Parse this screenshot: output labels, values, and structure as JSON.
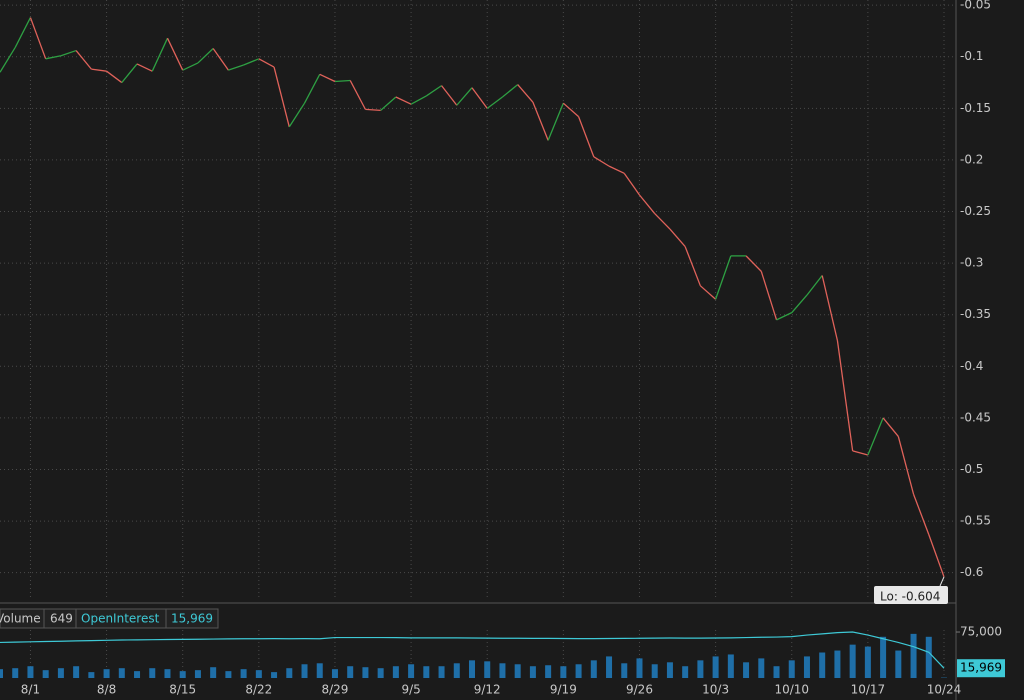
{
  "chart_data": [
    {
      "type": "line",
      "values": [
        -0.115,
        -0.091,
        -0.062,
        -0.102,
        -0.099,
        -0.094,
        -0.112,
        -0.114,
        -0.125,
        -0.107,
        -0.114,
        -0.082,
        -0.113,
        -0.106,
        -0.092,
        -0.113,
        -0.108,
        -0.102,
        -0.11,
        -0.168,
        -0.145,
        -0.117,
        -0.124,
        -0.123,
        -0.151,
        -0.152,
        -0.139,
        -0.146,
        -0.138,
        -0.128,
        -0.147,
        -0.13,
        -0.15,
        -0.139,
        -0.127,
        -0.144,
        -0.181,
        -0.145,
        -0.158,
        -0.197,
        -0.206,
        -0.213,
        -0.234,
        -0.252,
        -0.267,
        -0.284,
        -0.322,
        -0.335,
        -0.293,
        -0.293,
        -0.308,
        -0.355,
        -0.348,
        -0.331,
        -0.312,
        -0.375,
        -0.482,
        -0.486,
        -0.45,
        -0.468,
        -0.524,
        -0.563,
        -0.604
      ],
      "up_color": "#2ea043",
      "down_color": "#e0625a",
      "ylim": [
        -0.6265,
        -0.045
      ],
      "yticks": [
        -0.05,
        -0.1,
        -0.15,
        -0.2,
        -0.25,
        -0.3,
        -0.35,
        -0.4,
        -0.45,
        -0.5,
        -0.55,
        -0.6
      ],
      "grid": true,
      "annotation": "Lo: -0.604"
    },
    {
      "type": "bar",
      "categories": [
        null,
        null,
        "8/1",
        null,
        null,
        null,
        null,
        "8/8",
        null,
        null,
        null,
        null,
        "8/15",
        null,
        null,
        null,
        null,
        "8/22",
        null,
        null,
        null,
        null,
        "8/29",
        null,
        null,
        null,
        null,
        "9/5",
        null,
        null,
        null,
        null,
        "9/12",
        null,
        null,
        null,
        null,
        "9/19",
        null,
        null,
        null,
        null,
        "9/26",
        null,
        null,
        null,
        null,
        "10/3",
        null,
        null,
        null,
        null,
        "10/10",
        null,
        null,
        null,
        null,
        "10/17",
        null,
        null,
        null,
        null,
        "10/24"
      ],
      "series": [
        {
          "name": "Volume",
          "type": "bar",
          "color": "#1f6fa8",
          "readout": "649",
          "values": [
            14400,
            16000,
            19200,
            12800,
            16000,
            19200,
            9600,
            14400,
            16000,
            11200,
            16000,
            14400,
            11200,
            12800,
            17600,
            11200,
            14400,
            12800,
            9600,
            16000,
            22400,
            24000,
            14400,
            19200,
            17600,
            16000,
            19200,
            22400,
            19200,
            19200,
            24000,
            28800,
            27200,
            24000,
            22400,
            19200,
            20800,
            19200,
            22400,
            28800,
            35200,
            24000,
            32000,
            22400,
            25600,
            19200,
            28800,
            35200,
            38400,
            25600,
            32000,
            19200,
            28800,
            35200,
            41600,
            44800,
            54400,
            51200,
            67200,
            44800,
            72000,
            67200,
            649
          ]
        },
        {
          "name": "OpenInterest",
          "type": "line",
          "color": "#3ec9d6",
          "readout": "15,969",
          "values": [
            58000,
            58500,
            59000,
            59500,
            60000,
            60500,
            61000,
            61500,
            62000,
            62200,
            62500,
            62800,
            63000,
            63200,
            63500,
            63800,
            64000,
            64000,
            64200,
            64000,
            64200,
            64000,
            66000,
            66000,
            66000,
            66000,
            65800,
            65500,
            65500,
            65500,
            65500,
            65200,
            65000,
            64800,
            64800,
            64600,
            64600,
            64400,
            64200,
            64200,
            64400,
            64600,
            64800,
            65000,
            65200,
            65000,
            65000,
            65200,
            65400,
            66000,
            66500,
            66800,
            67500,
            70000,
            72000,
            74000,
            75000,
            70000,
            64000,
            58000,
            51000,
            42000,
            15969
          ]
        }
      ],
      "ylim": [
        0,
        81560
      ],
      "yticks": [
        {
          "value": 75000,
          "label": "75,000"
        }
      ]
    }
  ]
}
